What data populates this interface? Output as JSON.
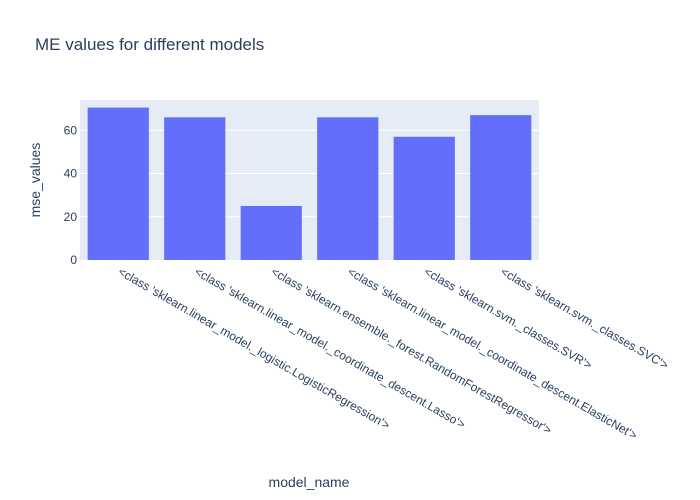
{
  "chart_data": {
    "type": "bar",
    "title": "ME values for different models",
    "xlabel": "model_name",
    "ylabel": "mse_values",
    "categories": [
      "<class 'sklearn.linear_model._logistic.LogisticRegression'>",
      "<class 'sklearn.linear_model._coordinate_descent.Lasso'>",
      "<class 'sklearn.ensemble._forest.RandomForestRegressor'>",
      "<class 'sklearn.linear_model._coordinate_descent.ElasticNet'>",
      "<class 'sklearn.svm._classes.SVR'>",
      "<class 'sklearn.svm._classes.SVC'>"
    ],
    "values": [
      70.5,
      66,
      25,
      66,
      57,
      67
    ],
    "ylim": [
      0,
      74
    ],
    "yticks": [
      0,
      20,
      40,
      60
    ],
    "grid": true,
    "colors": {
      "bar": "#636efa",
      "plot_bg": "#e5ecf6",
      "text": "#2a3f5f"
    }
  }
}
